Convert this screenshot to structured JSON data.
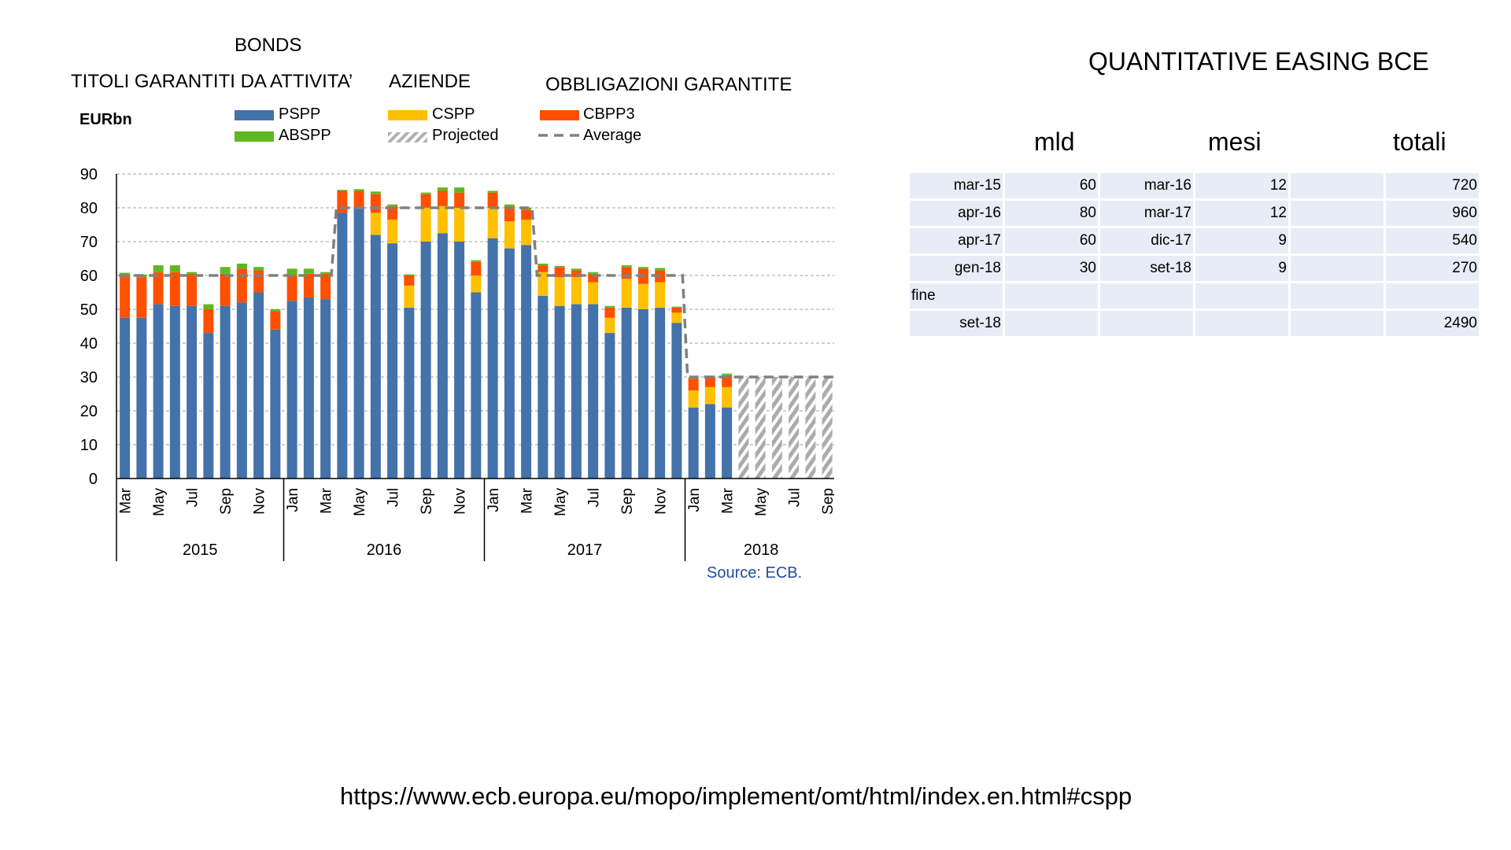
{
  "labels": {
    "bonds": "BONDS",
    "abs": "TITOLI GARANTITI DA ATTIVITA’",
    "aziende": "AZIENDE",
    "obbligazioni": "OBBLIGAZIONI GARANTITE"
  },
  "chart_data": {
    "type": "bar",
    "unit_label": "EURbn",
    "ylim": [
      0,
      90
    ],
    "yticks": [
      0,
      10,
      20,
      30,
      40,
      50,
      60,
      70,
      80,
      90
    ],
    "grid": true,
    "legend": [
      {
        "name": "PSPP",
        "color": "#4472aa",
        "style": "solid"
      },
      {
        "name": "CSPP",
        "color": "#ffc000",
        "style": "solid"
      },
      {
        "name": "CBPP3",
        "color": "#ff5000",
        "style": "solid"
      },
      {
        "name": "ABSPP",
        "color": "#5eb820",
        "style": "solid"
      },
      {
        "name": "Projected",
        "color": "#b0b0b0",
        "style": "hatched"
      },
      {
        "name": "Average",
        "color": "#808080",
        "style": "dashed"
      }
    ],
    "month_ticks": [
      "Mar",
      "May",
      "Jul",
      "Sep",
      "Nov",
      "Jan",
      "Mar",
      "May",
      "Jul",
      "Sep",
      "Nov",
      "Jan",
      "Mar",
      "May",
      "Jul",
      "Sep",
      "Nov",
      "Jan",
      "Mar",
      "May",
      "Jul",
      "Sep"
    ],
    "years": [
      "2015",
      "2016",
      "2017",
      "2018"
    ],
    "months": [
      "2015-03",
      "2015-04",
      "2015-05",
      "2015-06",
      "2015-07",
      "2015-08",
      "2015-09",
      "2015-10",
      "2015-11",
      "2015-12",
      "2016-01",
      "2016-02",
      "2016-03",
      "2016-04",
      "2016-05",
      "2016-06",
      "2016-07",
      "2016-08",
      "2016-09",
      "2016-10",
      "2016-11",
      "2016-12",
      "2017-01",
      "2017-02",
      "2017-03",
      "2017-04",
      "2017-05",
      "2017-06",
      "2017-07",
      "2017-08",
      "2017-09",
      "2017-10",
      "2017-11",
      "2017-12",
      "2018-01",
      "2018-02",
      "2018-03",
      "2018-04",
      "2018-05",
      "2018-06",
      "2018-07",
      "2018-08",
      "2018-09"
    ],
    "series": [
      {
        "name": "PSPP",
        "values": [
          47.5,
          47.5,
          51.5,
          51,
          51,
          43,
          51,
          52,
          55,
          44,
          52.5,
          53.5,
          53,
          78.5,
          80,
          72,
          69.5,
          50.5,
          70,
          72.5,
          70,
          55,
          71,
          68,
          69,
          54,
          51,
          51.5,
          51.5,
          43,
          50.5,
          50,
          50.5,
          46,
          21,
          22,
          21,
          null,
          null,
          null,
          null,
          null,
          null
        ]
      },
      {
        "name": "CSPP",
        "values": [
          0,
          0,
          0,
          0,
          0,
          0,
          0,
          0,
          0,
          0,
          0,
          0,
          0,
          0,
          0,
          6.5,
          7,
          6.5,
          10,
          8,
          10,
          5,
          9,
          8,
          7.5,
          7,
          8.5,
          8,
          6.5,
          4.5,
          8.5,
          7.5,
          7.5,
          3,
          5,
          5,
          6,
          null,
          null,
          null,
          null,
          null,
          null
        ]
      },
      {
        "name": "CBPP3",
        "values": [
          12.5,
          12,
          9.5,
          10,
          9.5,
          7,
          9.5,
          10,
          6.5,
          5.5,
          7.5,
          7,
          7.5,
          6.5,
          5,
          5.5,
          4,
          3,
          4,
          4.5,
          4.5,
          4,
          4.5,
          4.5,
          3,
          2,
          3,
          2,
          2.5,
          3,
          3.5,
          4.5,
          3.5,
          1.5,
          3.5,
          3,
          3.5,
          null,
          null,
          null,
          null,
          null,
          null
        ]
      },
      {
        "name": "ABSPP",
        "values": [
          0.8,
          0.8,
          2,
          2,
          0.5,
          1.5,
          2,
          1.5,
          1,
          0.5,
          2,
          1.5,
          0.5,
          0.3,
          0.5,
          0.8,
          0.5,
          0.3,
          0.5,
          1,
          1.5,
          0.5,
          0.5,
          0.5,
          0.5,
          0.5,
          0.3,
          0.5,
          0.5,
          0.5,
          0.5,
          0.5,
          0.7,
          0.3,
          0.4,
          0.4,
          0.5,
          null,
          null,
          null,
          null,
          null,
          null
        ]
      },
      {
        "name": "Projected",
        "values": [
          null,
          null,
          null,
          null,
          null,
          null,
          null,
          null,
          null,
          null,
          null,
          null,
          null,
          null,
          null,
          null,
          null,
          null,
          null,
          null,
          null,
          null,
          null,
          null,
          null,
          null,
          null,
          null,
          null,
          null,
          null,
          null,
          null,
          null,
          null,
          null,
          null,
          30,
          30,
          30,
          30,
          30,
          30
        ]
      },
      {
        "name": "Average",
        "values": [
          60,
          60,
          60,
          60,
          60,
          60,
          60,
          60,
          60,
          60,
          60,
          60,
          60,
          80,
          80,
          80,
          80,
          80,
          80,
          80,
          80,
          80,
          80,
          80,
          80,
          60,
          60,
          60,
          60,
          60,
          60,
          60,
          60,
          60,
          30,
          30,
          30,
          30,
          30,
          30,
          30,
          30,
          30
        ]
      }
    ],
    "source": "Source: ECB."
  },
  "table": {
    "title": "QUANTITATIVE EASING BCE",
    "headers": [
      "mld",
      "mesi",
      "totali"
    ],
    "rows": [
      {
        "c1": "mar-15",
        "c2": "60",
        "c3": "mar-16",
        "c4": "12",
        "c5": "",
        "c6": "720"
      },
      {
        "c1": "apr-16",
        "c2": "80",
        "c3": "mar-17",
        "c4": "12",
        "c5": "",
        "c6": "960"
      },
      {
        "c1": "apr-17",
        "c2": "60",
        "c3": "dic-17",
        "c4": "9",
        "c5": "",
        "c6": "540"
      },
      {
        "c1": "gen-18",
        "c2": "30",
        "c3": "set-18",
        "c4": "9",
        "c5": "",
        "c6": "270"
      },
      {
        "c1": "fine",
        "c2": "",
        "c3": "",
        "c4": "",
        "c5": "",
        "c6": ""
      },
      {
        "c1": "set-18",
        "c2": "",
        "c3": "",
        "c4": "",
        "c5": "",
        "c6": "2490"
      }
    ]
  },
  "footer": {
    "url": "https://www.ecb.europa.eu/mopo/implement/omt/html/index.en.html#cspp"
  }
}
